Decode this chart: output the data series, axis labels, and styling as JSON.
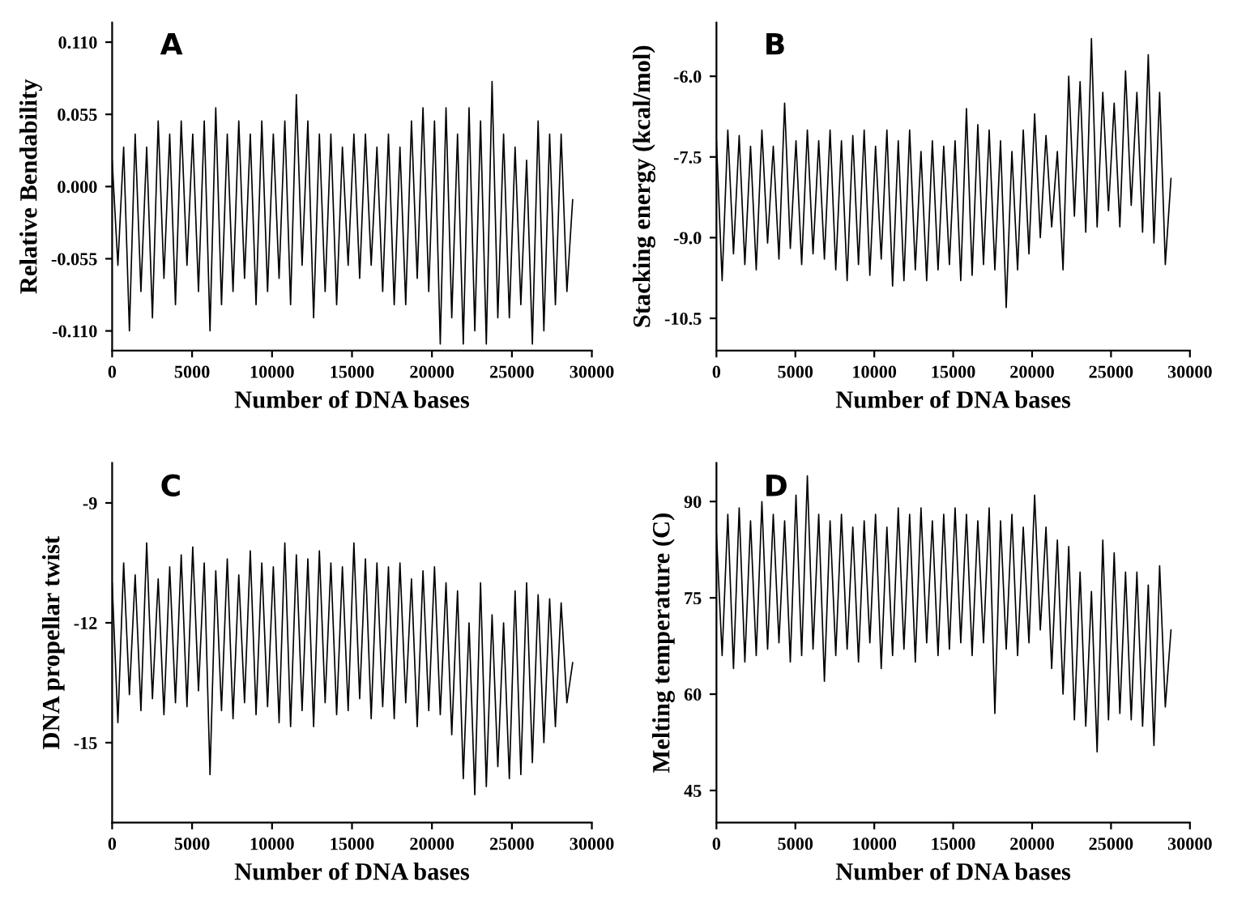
{
  "chart_data": [
    {
      "type": "line",
      "title": "A",
      "xlabel": "Number of DNA bases",
      "ylabel": "Relative Bendability",
      "xlim": [
        0,
        30000
      ],
      "xticks": [
        0,
        5000,
        10000,
        15000,
        20000,
        25000,
        30000
      ],
      "ylim": [
        -0.125,
        0.125
      ],
      "yticks": [
        {
          "value": -0.11,
          "label": "-0.110"
        },
        {
          "value": -0.055,
          "label": "-0.055"
        },
        {
          "value": 0,
          "label": "0.000"
        },
        {
          "value": 0.055,
          "label": "0.055"
        },
        {
          "value": 0.11,
          "label": "0.110"
        }
      ],
      "grid": false,
      "legend": false,
      "series": [
        {
          "color": "#000000",
          "values": [
            0.02,
            -0.06,
            0.03,
            -0.11,
            0.04,
            -0.08,
            0.03,
            -0.1,
            0.05,
            -0.07,
            0.04,
            -0.09,
            0.05,
            -0.06,
            0.04,
            -0.08,
            0.05,
            -0.11,
            0.06,
            -0.09,
            0.04,
            -0.08,
            0.05,
            -0.07,
            0.04,
            -0.09,
            0.05,
            -0.08,
            0.04,
            -0.07,
            0.05,
            -0.09,
            0.07,
            -0.06,
            0.05,
            -0.1,
            0.04,
            -0.08,
            0.04,
            -0.09,
            0.03,
            -0.06,
            0.04,
            -0.07,
            0.04,
            -0.06,
            0.03,
            -0.08,
            0.04,
            -0.09,
            0.03,
            -0.09,
            0.05,
            -0.07,
            0.06,
            -0.08,
            0.05,
            -0.12,
            0.06,
            -0.1,
            0.04,
            -0.12,
            0.06,
            -0.11,
            0.05,
            -0.12,
            0.08,
            -0.1,
            0.04,
            -0.1,
            0.03,
            -0.09,
            0.02,
            -0.12,
            0.05,
            -0.11,
            0.04,
            -0.09,
            0.04,
            -0.08,
            -0.01
          ]
        }
      ],
      "x": [
        0,
        360,
        720,
        1080,
        1440,
        1800,
        2160,
        2520,
        2880,
        3240,
        3600,
        3960,
        4320,
        4680,
        5040,
        5400,
        5760,
        6120,
        6480,
        6840,
        7200,
        7560,
        7920,
        8280,
        8640,
        9000,
        9360,
        9720,
        10080,
        10440,
        10800,
        11160,
        11520,
        11880,
        12240,
        12600,
        12960,
        13320,
        13680,
        14040,
        14400,
        14760,
        15120,
        15480,
        15840,
        16200,
        16560,
        16920,
        17280,
        17640,
        18000,
        18360,
        18720,
        19080,
        19440,
        19800,
        20160,
        20520,
        20880,
        21240,
        21600,
        21960,
        22320,
        22680,
        23040,
        23400,
        23760,
        24120,
        24480,
        24840,
        25200,
        25560,
        25920,
        26280,
        26640,
        27000,
        27360,
        27720,
        28080,
        28440,
        28800
      ]
    },
    {
      "type": "line",
      "title": "B",
      "xlabel": "Number of DNA bases",
      "ylabel": "Stacking energy (kcal/mol)",
      "xlim": [
        0,
        30000
      ],
      "xticks": [
        0,
        5000,
        10000,
        15000,
        20000,
        25000,
        30000
      ],
      "ylim": [
        -11.1,
        -5.0
      ],
      "yticks": [
        {
          "value": -10.5,
          "label": "-10.5"
        },
        {
          "value": -9,
          "label": "-9.0"
        },
        {
          "value": -7.5,
          "label": "-7.5"
        },
        {
          "value": -6,
          "label": "-6.0"
        }
      ],
      "grid": false,
      "legend": false,
      "series": [
        {
          "color": "#000000",
          "values": [
            -7.2,
            -9.8,
            -7.0,
            -9.3,
            -7.1,
            -9.5,
            -7.3,
            -9.6,
            -7.0,
            -9.1,
            -7.3,
            -9.4,
            -6.5,
            -9.2,
            -7.2,
            -9.5,
            -7.0,
            -9.3,
            -7.2,
            -9.4,
            -7.0,
            -9.6,
            -7.2,
            -9.8,
            -7.1,
            -9.5,
            -7.0,
            -9.7,
            -7.3,
            -9.4,
            -7.0,
            -9.9,
            -7.2,
            -9.8,
            -7.0,
            -9.6,
            -7.4,
            -9.8,
            -7.2,
            -9.6,
            -7.3,
            -9.5,
            -7.2,
            -9.8,
            -6.6,
            -9.7,
            -6.9,
            -9.5,
            -7.0,
            -9.6,
            -7.2,
            -10.3,
            -7.4,
            -9.6,
            -7.0,
            -9.3,
            -6.7,
            -9.0,
            -7.1,
            -8.8,
            -7.4,
            -9.6,
            -6.0,
            -8.6,
            -6.1,
            -8.9,
            -5.3,
            -8.8,
            -6.3,
            -8.5,
            -6.5,
            -8.8,
            -5.9,
            -8.4,
            -6.3,
            -8.9,
            -5.6,
            -9.1,
            -6.3,
            -9.5,
            -7.9
          ]
        }
      ],
      "x": [
        0,
        360,
        720,
        1080,
        1440,
        1800,
        2160,
        2520,
        2880,
        3240,
        3600,
        3960,
        4320,
        4680,
        5040,
        5400,
        5760,
        6120,
        6480,
        6840,
        7200,
        7560,
        7920,
        8280,
        8640,
        9000,
        9360,
        9720,
        10080,
        10440,
        10800,
        11160,
        11520,
        11880,
        12240,
        12600,
        12960,
        13320,
        13680,
        14040,
        14400,
        14760,
        15120,
        15480,
        15840,
        16200,
        16560,
        16920,
        17280,
        17640,
        18000,
        18360,
        18720,
        19080,
        19440,
        19800,
        20160,
        20520,
        20880,
        21240,
        21600,
        21960,
        22320,
        22680,
        23040,
        23400,
        23760,
        24120,
        24480,
        24840,
        25200,
        25560,
        25920,
        26280,
        26640,
        27000,
        27360,
        27720,
        28080,
        28440,
        28800
      ]
    },
    {
      "type": "line",
      "title": "C",
      "xlabel": "Number of DNA bases",
      "ylabel": "DNA propellar twist",
      "xlim": [
        0,
        30000
      ],
      "xticks": [
        0,
        5000,
        10000,
        15000,
        20000,
        25000,
        30000
      ],
      "ylim": [
        -17,
        -8
      ],
      "yticks": [
        -15,
        -12,
        -9
      ],
      "grid": false,
      "legend": false,
      "series": [
        {
          "color": "#000000",
          "values": [
            -11.0,
            -14.5,
            -10.5,
            -13.8,
            -10.8,
            -14.2,
            -10.0,
            -13.9,
            -10.9,
            -14.3,
            -10.6,
            -14.0,
            -10.3,
            -14.1,
            -10.1,
            -13.7,
            -10.5,
            -15.8,
            -10.7,
            -14.2,
            -10.4,
            -14.4,
            -10.8,
            -14.0,
            -10.2,
            -14.3,
            -10.5,
            -14.1,
            -10.6,
            -14.5,
            -10.0,
            -14.6,
            -10.3,
            -14.2,
            -10.4,
            -14.6,
            -10.2,
            -14.0,
            -10.5,
            -14.3,
            -10.6,
            -14.2,
            -10.0,
            -13.9,
            -10.4,
            -14.4,
            -10.5,
            -14.1,
            -10.6,
            -14.4,
            -10.5,
            -14.0,
            -10.9,
            -14.6,
            -10.7,
            -14.2,
            -10.6,
            -14.3,
            -11.0,
            -14.8,
            -11.2,
            -15.9,
            -12.0,
            -16.3,
            -11.0,
            -16.1,
            -11.8,
            -15.6,
            -12.0,
            -15.9,
            -11.2,
            -15.8,
            -11.0,
            -15.5,
            -11.3,
            -15.0,
            -11.4,
            -14.6,
            -11.5,
            -14.0,
            -13.0
          ]
        }
      ],
      "x": [
        0,
        360,
        720,
        1080,
        1440,
        1800,
        2160,
        2520,
        2880,
        3240,
        3600,
        3960,
        4320,
        4680,
        5040,
        5400,
        5760,
        6120,
        6480,
        6840,
        7200,
        7560,
        7920,
        8280,
        8640,
        9000,
        9360,
        9720,
        10080,
        10440,
        10800,
        11160,
        11520,
        11880,
        12240,
        12600,
        12960,
        13320,
        13680,
        14040,
        14400,
        14760,
        15120,
        15480,
        15840,
        16200,
        16560,
        16920,
        17280,
        17640,
        18000,
        18360,
        18720,
        19080,
        19440,
        19800,
        20160,
        20520,
        20880,
        21240,
        21600,
        21960,
        22320,
        22680,
        23040,
        23400,
        23760,
        24120,
        24480,
        24840,
        25200,
        25560,
        25920,
        26280,
        26640,
        27000,
        27360,
        27720,
        28080,
        28440,
        28800
      ]
    },
    {
      "type": "line",
      "title": "D",
      "xlabel": "Number of DNA bases",
      "ylabel": "Melting temperature (C)",
      "xlim": [
        0,
        30000
      ],
      "xticks": [
        0,
        5000,
        10000,
        15000,
        20000,
        25000,
        30000
      ],
      "ylim": [
        40,
        96
      ],
      "yticks": [
        45,
        60,
        75,
        90
      ],
      "grid": false,
      "legend": false,
      "series": [
        {
          "color": "#000000",
          "values": [
            85,
            66,
            88,
            64,
            89,
            65,
            87,
            66,
            90,
            67,
            88,
            68,
            87,
            65,
            91,
            66,
            94,
            67,
            88,
            62,
            87,
            66,
            88,
            67,
            86,
            65,
            87,
            68,
            88,
            64,
            86,
            66,
            89,
            67,
            88,
            65,
            89,
            68,
            87,
            66,
            88,
            67,
            89,
            68,
            88,
            66,
            87,
            68,
            89,
            57,
            87,
            67,
            88,
            66,
            86,
            68,
            91,
            70,
            86,
            64,
            84,
            60,
            83,
            56,
            79,
            55,
            76,
            51,
            84,
            56,
            82,
            57,
            79,
            56,
            79,
            55,
            77,
            52,
            80,
            58,
            70
          ]
        }
      ],
      "x": [
        0,
        360,
        720,
        1080,
        1440,
        1800,
        2160,
        2520,
        2880,
        3240,
        3600,
        3960,
        4320,
        4680,
        5040,
        5400,
        5760,
        6120,
        6480,
        6840,
        7200,
        7560,
        7920,
        8280,
        8640,
        9000,
        9360,
        9720,
        10080,
        10440,
        10800,
        11160,
        11520,
        11880,
        12240,
        12600,
        12960,
        13320,
        13680,
        14040,
        14400,
        14760,
        15120,
        15480,
        15840,
        16200,
        16560,
        16920,
        17280,
        17640,
        18000,
        18360,
        18720,
        19080,
        19440,
        19800,
        20160,
        20520,
        20880,
        21240,
        21600,
        21960,
        22320,
        22680,
        23040,
        23400,
        23760,
        24120,
        24480,
        24840,
        25200,
        25560,
        25920,
        26280,
        26640,
        27000,
        27360,
        27720,
        28080,
        28440,
        28800
      ]
    }
  ]
}
